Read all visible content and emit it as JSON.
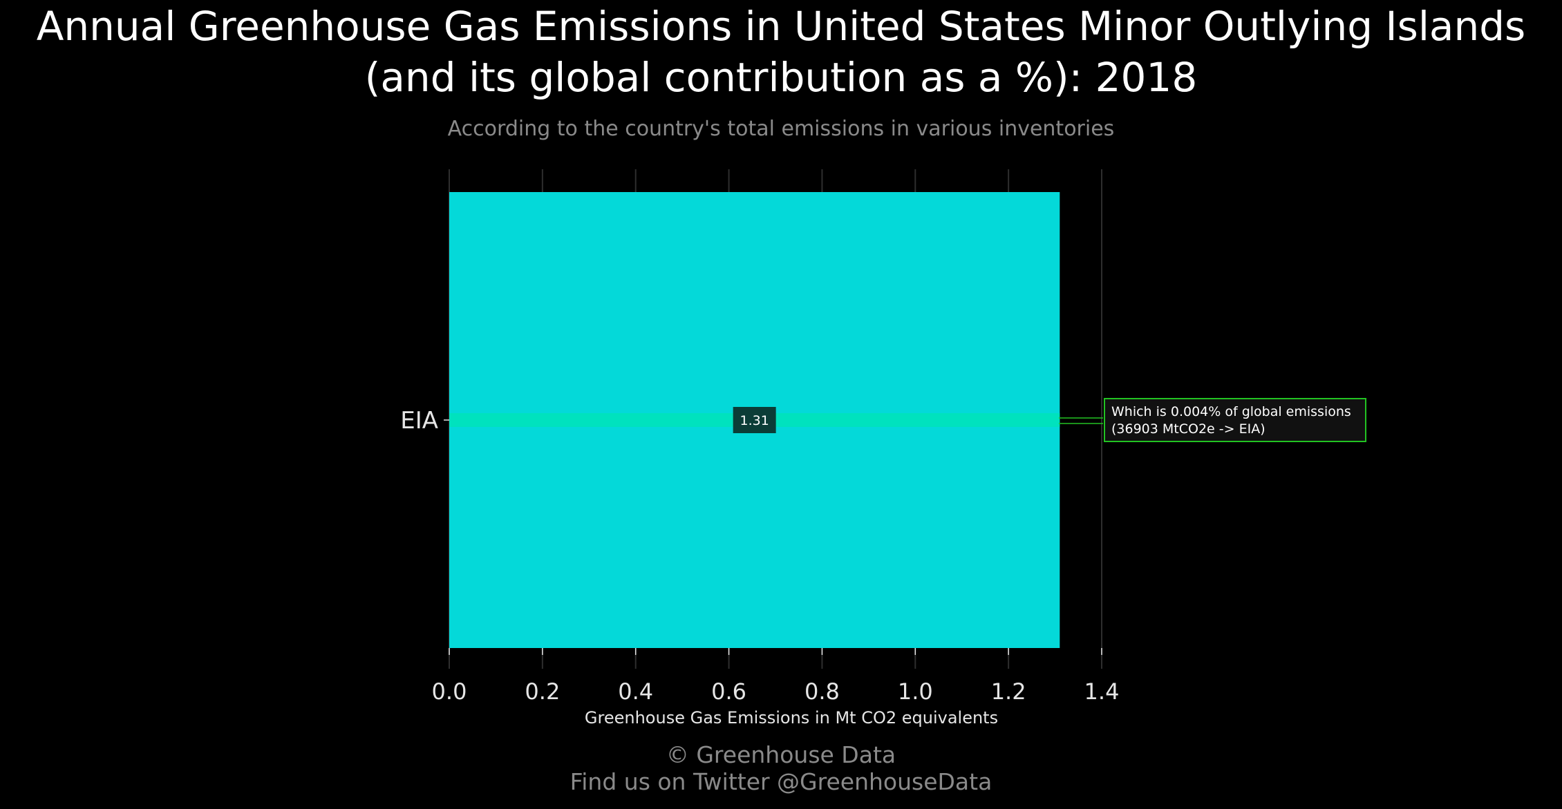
{
  "chart_data": {
    "type": "bar",
    "orientation": "horizontal",
    "title_line1": "Annual Greenhouse Gas Emissions in United States Minor Outlying Islands",
    "title_line2": "(and its global contribution as a %): 2018",
    "subtitle": "According to the country's total emissions in various inventories",
    "categories": [
      "EIA"
    ],
    "values": [
      1.31
    ],
    "data_labels": [
      "1.31"
    ],
    "xlabel": "Greenhouse Gas Emissions in Mt CO2 equivalents",
    "ylabel": "",
    "xlim": [
      0,
      1.4
    ],
    "x_ticks": [
      0,
      0.2,
      0.4,
      0.6,
      0.8,
      1.0,
      1.2,
      1.4
    ],
    "x_tick_labels": [
      "0.0",
      "0.2",
      "0.4",
      "0.6",
      "0.8",
      "1.0",
      "1.2",
      "1.4"
    ],
    "grid": true,
    "annotation_line1": "Which is 0.004% of global emissions",
    "annotation_line2": "(36903 MtCO2e -> EIA)",
    "footer_line1": "© Greenhouse Data",
    "footer_line2": "Find us on Twitter @GreenhouseData",
    "colors": {
      "background": "#000000",
      "bar": "#04d9d9",
      "bar_center_line": "#00e3b8",
      "value_label_bg": "#0b3d37",
      "annotation_border": "#22c322",
      "annotation_bg": "#111111",
      "title": "#ffffff",
      "subtitle": "#8a8a8a",
      "footer": "#8a8a8a",
      "grid": "#2e2e2e",
      "axis_text": "#e6e6e6"
    }
  }
}
